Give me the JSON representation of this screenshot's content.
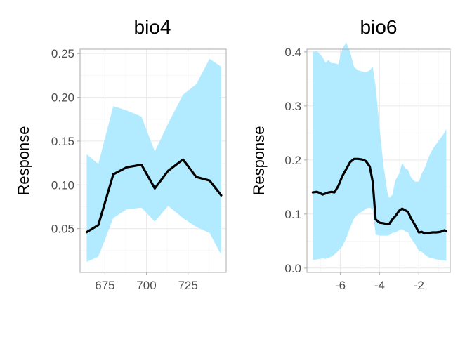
{
  "chart_data": [
    {
      "type": "line",
      "title": "bio4",
      "xlabel": "",
      "ylabel": "Response",
      "xlim": [
        660,
        748
      ],
      "ylim": [
        0.0,
        0.255
      ],
      "xticks": [
        675,
        700,
        725
      ],
      "yticks": [
        0.05,
        0.1,
        0.15,
        0.2,
        0.25
      ],
      "ytick_labels": [
        "0.05",
        "0.10",
        "0.15",
        "0.20",
        "0.25"
      ],
      "xtick_labels": [
        "675",
        "700",
        "725"
      ],
      "grid": true,
      "band_color": "#b2ebff",
      "line_color": "#000000",
      "x": [
        664,
        671,
        680,
        688,
        697,
        705,
        713,
        722,
        730,
        738,
        745
      ],
      "y": [
        0.046,
        0.054,
        0.112,
        0.12,
        0.123,
        0.096,
        0.116,
        0.129,
        0.109,
        0.105,
        0.088
      ],
      "lower": [
        0.012,
        0.018,
        0.062,
        0.072,
        0.074,
        0.058,
        0.076,
        0.062,
        0.052,
        0.045,
        0.02
      ],
      "upper": [
        0.135,
        0.124,
        0.19,
        0.185,
        0.178,
        0.138,
        0.17,
        0.203,
        0.215,
        0.244,
        0.235
      ]
    },
    {
      "type": "line",
      "title": "bio6",
      "xlabel": "",
      "ylabel": "Response",
      "xlim": [
        -7.7,
        -0.4
      ],
      "ylim": [
        -0.008,
        0.405
      ],
      "xticks": [
        -6,
        -4,
        -2
      ],
      "yticks": [
        0.0,
        0.1,
        0.2,
        0.3,
        0.4
      ],
      "ytick_labels": [
        "0.0",
        "0.1",
        "0.2",
        "0.3",
        "0.4"
      ],
      "xtick_labels": [
        "-6",
        "-4",
        "-2"
      ],
      "grid": true,
      "band_color": "#b2ebff",
      "line_color": "#000000",
      "x": [
        -7.4,
        -7.2,
        -7.05,
        -6.9,
        -6.75,
        -6.6,
        -6.45,
        -6.3,
        -6.1,
        -5.9,
        -5.7,
        -5.5,
        -5.3,
        -5.1,
        -4.9,
        -4.7,
        -4.5,
        -4.35,
        -4.2,
        -4.0,
        -3.8,
        -3.6,
        -3.5,
        -3.35,
        -3.2,
        -3.0,
        -2.85,
        -2.7,
        -2.55,
        -2.4,
        -2.2,
        -2.0,
        -1.85,
        -1.7,
        -1.5,
        -1.3,
        -1.1,
        -0.9,
        -0.7,
        -0.6
      ],
      "y": [
        0.14,
        0.141,
        0.139,
        0.136,
        0.138,
        0.14,
        0.141,
        0.14,
        0.152,
        0.17,
        0.183,
        0.196,
        0.202,
        0.202,
        0.201,
        0.198,
        0.188,
        0.16,
        0.09,
        0.084,
        0.083,
        0.081,
        0.082,
        0.09,
        0.096,
        0.106,
        0.11,
        0.107,
        0.104,
        0.092,
        0.08,
        0.066,
        0.067,
        0.064,
        0.065,
        0.066,
        0.066,
        0.067,
        0.07,
        0.068
      ],
      "lower": [
        0.015,
        0.016,
        0.017,
        0.018,
        0.017,
        0.019,
        0.021,
        0.025,
        0.032,
        0.04,
        0.055,
        0.075,
        0.092,
        0.1,
        0.104,
        0.11,
        0.112,
        0.108,
        0.062,
        0.06,
        0.06,
        0.06,
        0.061,
        0.065,
        0.066,
        0.07,
        0.072,
        0.068,
        0.066,
        0.055,
        0.045,
        0.032,
        0.03,
        0.025,
        0.02,
        0.018,
        0.016,
        0.015,
        0.014,
        0.013
      ],
      "upper": [
        0.4,
        0.402,
        0.396,
        0.39,
        0.38,
        0.385,
        0.379,
        0.379,
        0.377,
        0.405,
        0.418,
        0.4,
        0.372,
        0.366,
        0.364,
        0.362,
        0.366,
        0.372,
        0.336,
        0.26,
        0.19,
        0.14,
        0.13,
        0.135,
        0.162,
        0.175,
        0.195,
        0.185,
        0.182,
        0.168,
        0.16,
        0.16,
        0.175,
        0.185,
        0.205,
        0.22,
        0.23,
        0.24,
        0.25,
        0.258
      ]
    }
  ]
}
